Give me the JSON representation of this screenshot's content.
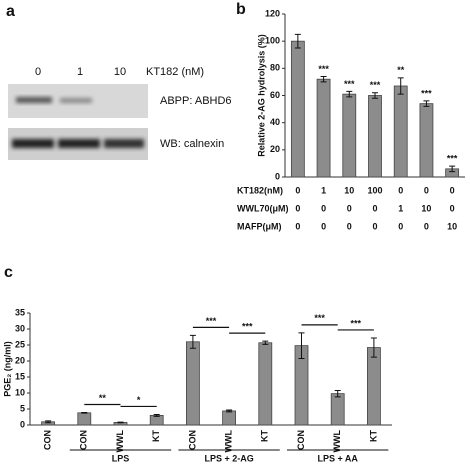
{
  "panel_labels": [
    "a",
    "b",
    "c"
  ],
  "blot": {
    "treatment": "KT182 (nM)",
    "lane_labels": [
      "0",
      "1",
      "10"
    ],
    "band_labels": [
      "ABPP: ABHD6",
      "WB: calnexin"
    ]
  },
  "chart_data": [
    {
      "type": "bar",
      "ylabel": "Relative 2-AG hydrolysis (%)",
      "color": "#8c8c8c",
      "values": [
        100,
        72,
        61,
        60,
        67,
        54,
        6
      ],
      "errors": [
        5,
        2,
        2,
        2,
        6,
        2,
        2
      ],
      "significance": [
        null,
        "***",
        "***",
        "***",
        "**",
        "***",
        "***"
      ],
      "ylim": [
        0,
        120
      ],
      "yticks": [
        0,
        20,
        40,
        60,
        80,
        100,
        120
      ],
      "conditions": [
        {
          "label": "KT182(nM)",
          "values": [
            0,
            1,
            10,
            100,
            0,
            0,
            0
          ]
        },
        {
          "label": "WWL70(μM)",
          "values": [
            0,
            0,
            0,
            0,
            1,
            10,
            0
          ]
        },
        {
          "label": "MAFP(μM)",
          "values": [
            0,
            0,
            0,
            0,
            0,
            0,
            10
          ]
        }
      ]
    },
    {
      "type": "bar",
      "ylabel": "PGE₂ (ng/ml)",
      "color": "#8c8c8c",
      "categories": [
        "CON",
        "CON",
        "WWL",
        "KT",
        "CON",
        "WWL",
        "KT",
        "CON",
        "WWL",
        "KT"
      ],
      "values": [
        1.0,
        3.8,
        0.8,
        3.0,
        26,
        4.4,
        25.7,
        24.8,
        9.8,
        24.2
      ],
      "errors": [
        0.3,
        0.1,
        0.1,
        0.3,
        2,
        0.3,
        0.5,
        4,
        1,
        3
      ],
      "ylim": [
        0,
        35
      ],
      "yticks": [
        0,
        5,
        10,
        15,
        20,
        25,
        30,
        35
      ],
      "groups": [
        {
          "label": "LPS",
          "span": [
            1,
            3
          ]
        },
        {
          "label": "LPS + 2-AG",
          "span": [
            4,
            6
          ]
        },
        {
          "label": "LPS + AA",
          "span": [
            7,
            9
          ]
        }
      ],
      "comparisons": [
        {
          "label": "**",
          "between": [
            1,
            2
          ]
        },
        {
          "label": "*",
          "between": [
            2,
            3
          ]
        },
        {
          "label": "***",
          "between": [
            4,
            5
          ]
        },
        {
          "label": "***",
          "between": [
            5,
            6
          ]
        },
        {
          "label": "***",
          "between": [
            7,
            8
          ]
        },
        {
          "label": "***",
          "between": [
            8,
            9
          ]
        }
      ]
    }
  ]
}
